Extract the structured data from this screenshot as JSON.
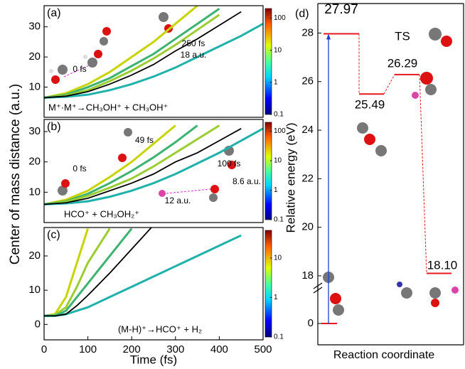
{
  "chart_data": [
    {
      "type": "line",
      "label": "(a)",
      "x": [
        0,
        50,
        100,
        150,
        200,
        250,
        300,
        350,
        400,
        450,
        500
      ],
      "series": [
        {
          "color": "#c8d400",
          "values": [
            6.5,
            8,
            11,
            15,
            20,
            25,
            31,
            37,
            null,
            null,
            null
          ]
        },
        {
          "color": "#3cb371",
          "values": [
            6.5,
            7.5,
            10,
            13,
            17,
            21,
            26,
            31,
            36,
            null,
            null
          ]
        },
        {
          "color": "#9acd32",
          "values": [
            6.5,
            7.2,
            9,
            12,
            15.5,
            19.5,
            24,
            29,
            34,
            null,
            null
          ]
        },
        {
          "color": "#20b2aa",
          "values": [
            6.5,
            6.8,
            7.5,
            9,
            11,
            13.5,
            16.5,
            20,
            23.5,
            27,
            31
          ]
        },
        {
          "color": "#000000",
          "values": [
            6.5,
            7,
            8.5,
            11,
            14,
            17.5,
            22,
            26,
            30.5,
            35,
            null
          ]
        }
      ],
      "ylim": [
        0,
        37
      ],
      "yticks": [
        10,
        20,
        30
      ],
      "xlim": [
        0,
        500
      ],
      "colorbar": {
        "ticks": [
          0.1,
          1,
          10,
          100
        ],
        "lim": [
          0.1,
          200
        ],
        "log": true
      },
      "annotations": [
        {
          "text": "250 fs",
          "color": "#1a1adb"
        },
        {
          "text": "18 a.u.",
          "color": "#1a1adb"
        },
        {
          "text": "0 fs",
          "color": "#1a1adb"
        },
        {
          "text": "M⁺·M⁺→CH₃OH⁺ + CH₃OH⁺",
          "color": "#000000"
        }
      ]
    },
    {
      "type": "line",
      "label": "(b)",
      "x": [
        0,
        50,
        100,
        150,
        200,
        250,
        300,
        350,
        400,
        450,
        500
      ],
      "series": [
        {
          "color": "#c8d400",
          "values": [
            6,
            7.5,
            10.5,
            15,
            20,
            26,
            32,
            null,
            null,
            null,
            null
          ]
        },
        {
          "color": "#3cb371",
          "values": [
            6,
            7,
            9.5,
            13,
            17,
            21.5,
            26.5,
            32,
            null,
            null,
            null
          ]
        },
        {
          "color": "#9acd32",
          "values": [
            6,
            6.8,
            8.8,
            11.5,
            14.5,
            18.5,
            23,
            27.5,
            32,
            null,
            null
          ]
        },
        {
          "color": "#20b2aa",
          "values": [
            6,
            6.3,
            7,
            8.5,
            10.5,
            13,
            16,
            19.5,
            23,
            27,
            31
          ]
        },
        {
          "color": "#000000",
          "values": [
            6,
            6.5,
            8,
            10.5,
            13,
            16,
            20,
            23,
            27,
            31,
            null
          ]
        }
      ],
      "ylim": [
        0,
        34
      ],
      "yticks": [
        10,
        20,
        30
      ],
      "xlim": [
        0,
        500
      ],
      "colorbar": {
        "ticks": [
          0.1,
          1,
          10,
          100
        ],
        "lim": [
          0.1,
          200
        ],
        "log": true
      },
      "annotations": [
        {
          "text": "49 fs",
          "color": "#1a1adb"
        },
        {
          "text": "0 fs",
          "color": "#1a1adb"
        },
        {
          "text": "100 fs",
          "color": "#1a1adb"
        },
        {
          "text": "8.6 a.u.",
          "color": "#1a1adb"
        },
        {
          "text": "12 a.u.",
          "color": "#1a1adb"
        },
        {
          "text": "HCO⁺ + CH₃OH₂⁺",
          "color": "#000000"
        }
      ]
    },
    {
      "type": "line",
      "label": "(c)",
      "xlabel": "Time (fs)",
      "ylabel": "Center of mass distance (a.u.)",
      "x": [
        0,
        25,
        50,
        75,
        100,
        150,
        200,
        250,
        300,
        350,
        400,
        450,
        500
      ],
      "series": [
        {
          "color": "#c8d400",
          "values": [
            2.5,
            3,
            8,
            18,
            28,
            null,
            null,
            null,
            null,
            null,
            null,
            null,
            null
          ]
        },
        {
          "color": "#9acd32",
          "values": [
            2.5,
            2.8,
            5,
            11,
            18,
            28,
            null,
            null,
            null,
            null,
            null,
            null,
            null
          ]
        },
        {
          "color": "#3cb371",
          "values": [
            2.5,
            2.5,
            4,
            8,
            12,
            20,
            28,
            null,
            null,
            null,
            null,
            null,
            null
          ]
        },
        {
          "color": "#20b2aa",
          "values": [
            2.5,
            2.5,
            3,
            4,
            5,
            8,
            11,
            14,
            17,
            20,
            23,
            26,
            null
          ]
        },
        {
          "color": "#000000",
          "values": [
            2.5,
            2.5,
            3,
            5.5,
            8.5,
            15,
            22,
            29,
            null,
            null,
            null,
            null,
            null
          ]
        }
      ],
      "ylim": [
        -4.5,
        28.3
      ],
      "yticks": [
        0,
        10,
        20
      ],
      "xlim": [
        0,
        500
      ],
      "xticks": [
        0,
        100,
        200,
        300,
        400,
        500
      ],
      "colorbar": {
        "ticks": [
          0.1,
          1,
          10
        ],
        "lim": [
          0.1,
          50
        ],
        "log": true
      },
      "annotations": [
        {
          "text": "(M-H)⁺→HCO⁺ + H₂",
          "color": "#000000"
        }
      ]
    },
    {
      "type": "level",
      "label": "(d)",
      "ylabel": "Relative energy (eV)",
      "xlabel": "Reaction coordinate",
      "values": [
        0,
        27.97,
        25.49,
        26.29,
        18.1
      ],
      "value_labels": [
        null,
        "27.97",
        "25.49",
        "26.29",
        "18.10"
      ],
      "color": "#e41a1c",
      "arrow_color": "#1f3fcf",
      "ylim": [
        0,
        28.6
      ],
      "axis_break": [
        1.3,
        17.5
      ],
      "yticks": [
        0,
        18,
        20,
        22,
        24,
        26,
        28
      ],
      "annotations": [
        {
          "text": "TS",
          "color": "#000000"
        }
      ]
    }
  ]
}
